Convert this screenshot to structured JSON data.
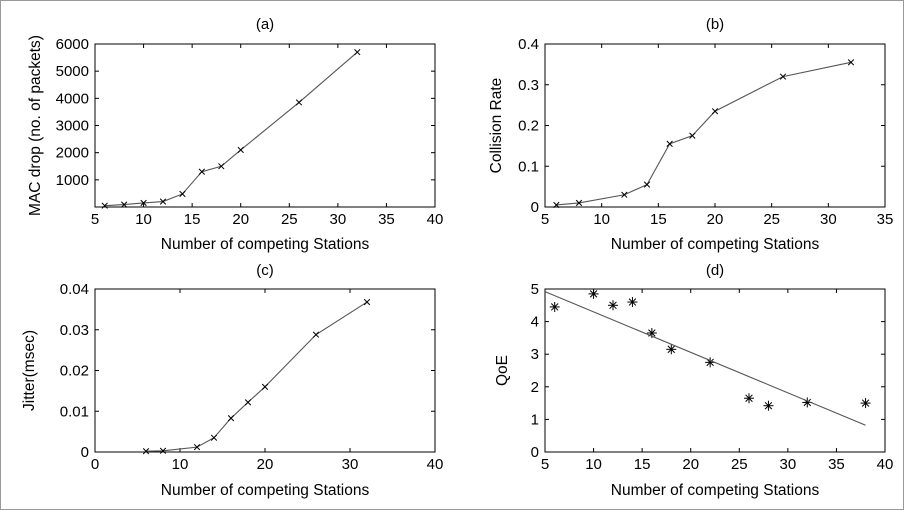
{
  "chart_data": [
    {
      "id": "a",
      "type": "line",
      "title": "(a)",
      "xlabel": "Number of competing Stations",
      "ylabel": "MAC drop (no. of packets)",
      "xlim": [
        5,
        40
      ],
      "ylim": [
        0,
        6000
      ],
      "xticks": [
        5,
        10,
        15,
        20,
        25,
        30,
        35,
        40
      ],
      "yticks": [
        1000,
        2000,
        3000,
        4000,
        5000,
        6000
      ],
      "marker": "x",
      "grid": false,
      "series": [
        {
          "x": [
            6,
            8,
            10,
            12,
            14,
            16,
            18,
            20,
            26,
            32
          ],
          "y": [
            50,
            90,
            150,
            200,
            480,
            1300,
            1500,
            2100,
            3850,
            5700
          ]
        }
      ]
    },
    {
      "id": "b",
      "type": "line",
      "title": "(b)",
      "xlabel": "Number of competing Stations",
      "ylabel": "Collision Rate",
      "xlim": [
        5,
        35
      ],
      "ylim": [
        0,
        0.4
      ],
      "xticks": [
        5,
        10,
        15,
        20,
        25,
        30,
        35
      ],
      "yticks": [
        0,
        0.1,
        0.2,
        0.3,
        0.4
      ],
      "marker": "x",
      "grid": false,
      "series": [
        {
          "x": [
            6,
            8,
            12,
            14,
            16,
            18,
            20,
            26,
            32
          ],
          "y": [
            0.005,
            0.01,
            0.03,
            0.055,
            0.155,
            0.175,
            0.235,
            0.32,
            0.355
          ]
        }
      ]
    },
    {
      "id": "c",
      "type": "line",
      "title": "(c)",
      "xlabel": "Number of competing Stations",
      "ylabel": "Jitter(msec)",
      "xlim": [
        0,
        40
      ],
      "ylim": [
        0,
        0.04
      ],
      "xticks": [
        0,
        10,
        20,
        30,
        40
      ],
      "yticks": [
        0,
        0.01,
        0.02,
        0.03,
        0.04
      ],
      "marker": "x",
      "grid": false,
      "series": [
        {
          "x": [
            6,
            8,
            12,
            14,
            16,
            18,
            20,
            26,
            32
          ],
          "y": [
            0.0002,
            0.0003,
            0.0012,
            0.0035,
            0.0083,
            0.0122,
            0.016,
            0.0288,
            0.0368
          ]
        }
      ]
    },
    {
      "id": "d",
      "type": "scatter",
      "title": "(d)",
      "xlabel": "Number of competing Stations",
      "ylabel": "QoE",
      "xlim": [
        5,
        40
      ],
      "ylim": [
        0,
        5
      ],
      "xticks": [
        5,
        10,
        15,
        20,
        25,
        30,
        35,
        40
      ],
      "yticks": [
        0,
        1,
        2,
        3,
        4,
        5
      ],
      "marker": "+",
      "grid": false,
      "series": [
        {
          "x": [
            6,
            10,
            12,
            14,
            16,
            18,
            22,
            26,
            28,
            32,
            38
          ],
          "y": [
            4.45,
            4.85,
            4.5,
            4.6,
            3.65,
            3.15,
            2.75,
            1.65,
            1.42,
            1.52,
            1.5
          ]
        }
      ],
      "fit_line": {
        "x": [
          5,
          38
        ],
        "y": [
          4.92,
          0.82
        ]
      }
    }
  ]
}
